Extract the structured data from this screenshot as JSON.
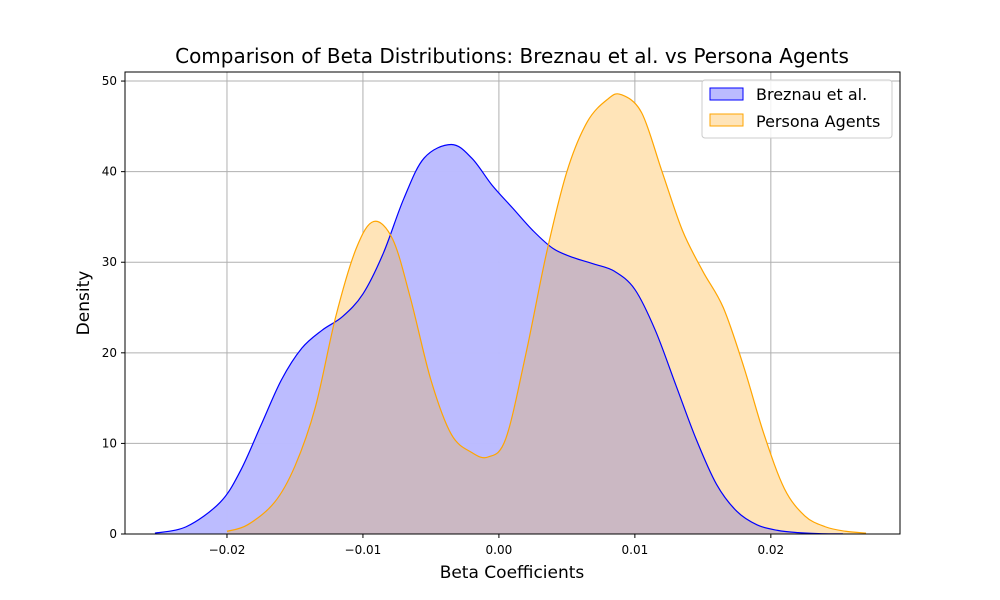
{
  "chart_data": {
    "type": "area",
    "title": "Comparison of Beta Distributions: Breznau et al. vs Persona Agents",
    "xlabel": "Beta Coefficients",
    "ylabel": "Density",
    "xlim": [
      -0.0275,
      0.0295
    ],
    "ylim": [
      0,
      51
    ],
    "xticks": [
      -0.02,
      -0.01,
      0.0,
      0.01,
      0.02
    ],
    "xtick_labels": [
      "−0.02",
      "−0.01",
      "0.00",
      "0.01",
      "0.02"
    ],
    "yticks": [
      0,
      10,
      20,
      30,
      40,
      50
    ],
    "ytick_labels": [
      "0",
      "10",
      "20",
      "30",
      "40",
      "50"
    ],
    "grid": true,
    "legend_position": "top-right",
    "series": [
      {
        "name": "Breznau et al.",
        "color": "#0000ff",
        "fill": "#bbbbff",
        "x": [
          -0.0253,
          -0.023,
          -0.0205,
          -0.019,
          -0.0175,
          -0.016,
          -0.0145,
          -0.013,
          -0.0115,
          -0.01,
          -0.0085,
          -0.007,
          -0.0055,
          -0.0035,
          -0.002,
          -0.0005,
          0.001,
          0.0025,
          0.004,
          0.0055,
          0.007,
          0.0085,
          0.01,
          0.0115,
          0.013,
          0.0145,
          0.016,
          0.0175,
          0.019,
          0.0205,
          0.022,
          0.0235,
          0.0253
        ],
        "y": [
          0.1,
          0.8,
          3.5,
          7,
          12,
          17,
          20.5,
          22.5,
          24,
          26.5,
          31,
          37,
          41.5,
          43,
          41.5,
          38.5,
          36,
          33.5,
          31.5,
          30.5,
          29.8,
          29,
          27,
          22.5,
          16.5,
          10.5,
          5.5,
          2.5,
          1,
          0.4,
          0.15,
          0.05,
          0.01
        ]
      },
      {
        "name": "Persona Agents",
        "color": "#ffa500",
        "fill": "#ffe4b8",
        "x": [
          -0.02,
          -0.0185,
          -0.0165,
          -0.015,
          -0.0135,
          -0.012,
          -0.0105,
          -0.0092,
          -0.0078,
          -0.0065,
          -0.005,
          -0.0035,
          -0.002,
          -0.0008,
          0.0005,
          0.002,
          0.0035,
          0.005,
          0.0065,
          0.008,
          0.009,
          0.0105,
          0.012,
          0.0135,
          0.015,
          0.0165,
          0.018,
          0.0195,
          0.021,
          0.0225,
          0.024,
          0.0255,
          0.027
        ],
        "y": [
          0.3,
          1,
          3.5,
          7.5,
          14,
          24,
          31.5,
          34.5,
          32.5,
          26,
          17,
          11,
          9,
          8.5,
          10.5,
          20,
          31,
          40,
          45.5,
          48,
          48.5,
          46.5,
          40,
          33.5,
          29,
          25,
          18.5,
          11,
          5,
          2,
          0.8,
          0.3,
          0.1
        ]
      }
    ]
  }
}
